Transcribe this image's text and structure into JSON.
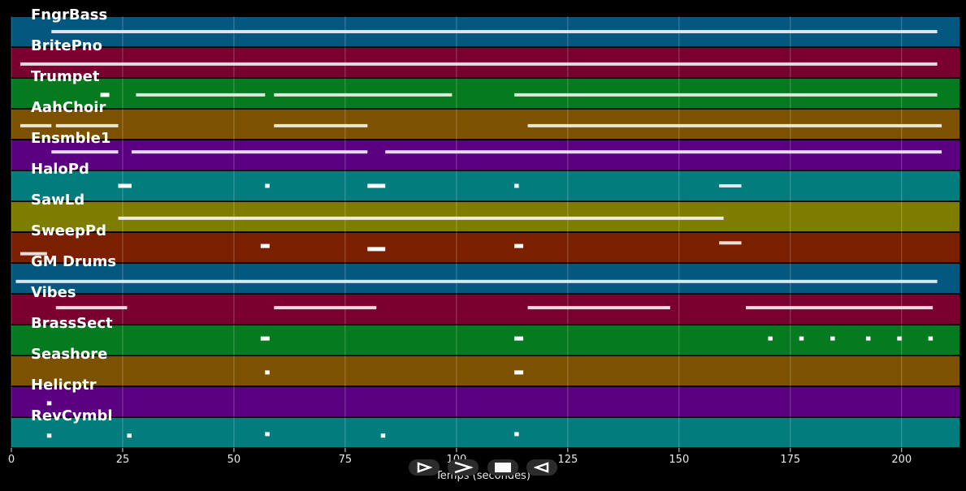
{
  "chart_data": {
    "type": "piano-roll",
    "xlabel": "Temps (secondes)",
    "xlim": [
      0,
      213
    ],
    "x_ticks": [
      0,
      25,
      50,
      75,
      100,
      125,
      150,
      175,
      200
    ],
    "grid": true,
    "tracks": [
      {
        "name": "FngrBass",
        "color": "#04587f",
        "notes": [
          [
            9,
            208,
            0.5
          ]
        ]
      },
      {
        "name": "BritePno",
        "color": "#7a0030",
        "notes": [
          [
            2,
            208,
            0.55
          ]
        ]
      },
      {
        "name": "Trumpet",
        "color": "#057a1f",
        "notes": [
          [
            20,
            22,
            0.55
          ],
          [
            28,
            57,
            0.55
          ],
          [
            59,
            99,
            0.55
          ],
          [
            113,
            208,
            0.55
          ]
        ]
      },
      {
        "name": "AahChoir",
        "color": "#7c5200",
        "notes": [
          [
            2,
            9,
            0.55
          ],
          [
            10,
            24,
            0.55
          ],
          [
            59,
            80,
            0.55
          ],
          [
            116,
            209,
            0.55
          ]
        ]
      },
      {
        "name": "Ensmble1",
        "color": "#5a0080",
        "notes": [
          [
            9,
            24,
            0.4
          ],
          [
            27,
            80,
            0.4
          ],
          [
            84,
            209,
            0.4
          ]
        ]
      },
      {
        "name": "HaloPd",
        "color": "#027c7c",
        "notes": [
          [
            24,
            27,
            0.5
          ],
          [
            57,
            58,
            0.5
          ],
          [
            80,
            84,
            0.5
          ],
          [
            113,
            114,
            0.5
          ],
          [
            159,
            164,
            0.5
          ]
        ]
      },
      {
        "name": "SawLd",
        "color": "#7f7d00",
        "notes": [
          [
            24,
            160,
            0.55
          ]
        ]
      },
      {
        "name": "SweepPd",
        "color": "#7a2000",
        "notes": [
          [
            2,
            8,
            0.7
          ],
          [
            56,
            58,
            0.45
          ],
          [
            80,
            84,
            0.55
          ],
          [
            113,
            115,
            0.45
          ],
          [
            159,
            164,
            0.35
          ]
        ]
      },
      {
        "name": "GM Drums",
        "color": "#04587f",
        "notes": [
          [
            1,
            208,
            0.6
          ]
        ]
      },
      {
        "name": "Vibes",
        "color": "#7a0030",
        "notes": [
          [
            10,
            26,
            0.45
          ],
          [
            59,
            82,
            0.45
          ],
          [
            116,
            148,
            0.45
          ],
          [
            165,
            207,
            0.45
          ]
        ]
      },
      {
        "name": "BrassSect",
        "color": "#057a1f",
        "notes": [
          [
            56,
            58,
            0.45
          ],
          [
            113,
            115,
            0.45
          ],
          [
            170,
            171,
            0.45
          ],
          [
            177,
            178,
            0.45
          ],
          [
            184,
            185,
            0.45
          ],
          [
            192,
            193,
            0.45
          ],
          [
            199,
            200,
            0.45
          ],
          [
            206,
            207,
            0.45
          ]
        ]
      },
      {
        "name": "Seashore",
        "color": "#7c5200",
        "notes": [
          [
            57,
            58,
            0.55
          ],
          [
            113,
            115,
            0.55
          ]
        ]
      },
      {
        "name": "Helicptr",
        "color": "#5a0080",
        "notes": [
          [
            8,
            9,
            0.55
          ]
        ]
      },
      {
        "name": "RevCymbl",
        "color": "#027c7c",
        "notes": [
          [
            8,
            9,
            0.6
          ],
          [
            26,
            27,
            0.6
          ],
          [
            57,
            58,
            0.55
          ],
          [
            83,
            84,
            0.6
          ],
          [
            113,
            114,
            0.55
          ]
        ]
      }
    ]
  },
  "controls": [
    {
      "name": "play-button",
      "icon": "play-icon"
    },
    {
      "name": "forward-button",
      "icon": "forward-icon"
    },
    {
      "name": "stop-button",
      "icon": "stop-icon"
    },
    {
      "name": "rewind-button",
      "icon": "rewind-icon"
    }
  ]
}
